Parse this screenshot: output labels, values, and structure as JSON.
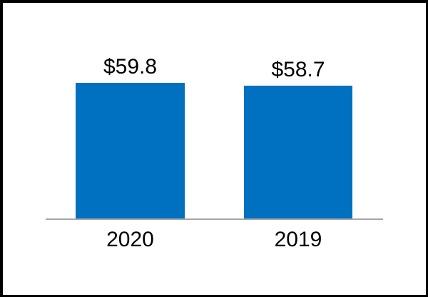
{
  "chart_data": {
    "type": "bar",
    "title": "",
    "categories": [
      "2020",
      "2019"
    ],
    "values": [
      59.8,
      58.7
    ],
    "value_labels": [
      "$59.8",
      "$58.7"
    ],
    "ylim": [
      0,
      65
    ],
    "xlabel": "",
    "ylabel": "",
    "grid": false,
    "legend": "none",
    "bar_color": "#0070C0",
    "axis_line_color": "#a6a6a6",
    "label_color": "#000000",
    "background_color": "#ffffff",
    "border_color": "#000000"
  }
}
